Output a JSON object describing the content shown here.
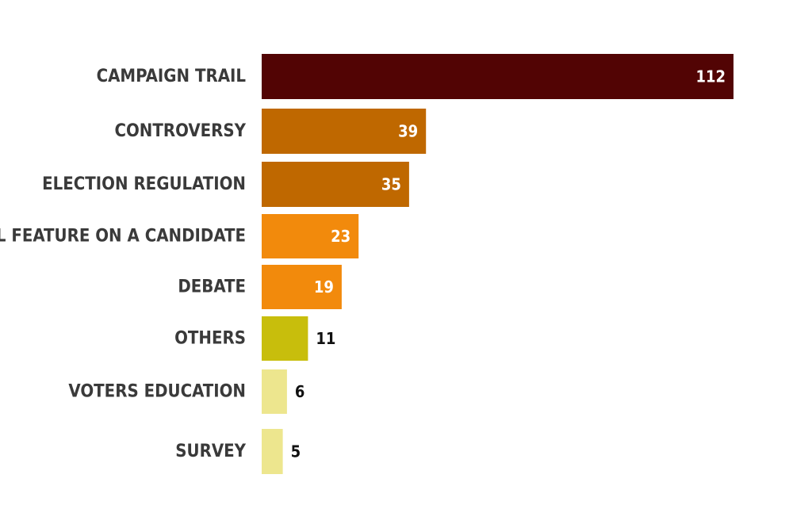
{
  "chart_data": {
    "type": "bar",
    "orientation": "horizontal",
    "title": "",
    "xlabel": "",
    "ylabel": "",
    "grid": false,
    "categories": [
      "CAMPAIGN TRAIL",
      "CONTROVERSY",
      "ELECTION REGULATION",
      "SPECIAL FEATURE ON A CANDIDATE",
      "DEBATE",
      "OTHERS",
      "VOTERS EDUCATION",
      "SURVEY"
    ],
    "values": [
      112,
      39,
      35,
      23,
      19,
      11,
      6,
      5
    ],
    "colors": [
      "#520404",
      "#bf6800",
      "#bf6800",
      "#f28a0c",
      "#f28a0c",
      "#c8be0c",
      "#ede68e",
      "#ede68e"
    ],
    "value_label_colors": [
      "#ffffff",
      "#ffffff",
      "#ffffff",
      "#ffffff",
      "#ffffff",
      "#111111",
      "#111111",
      "#111111"
    ]
  }
}
